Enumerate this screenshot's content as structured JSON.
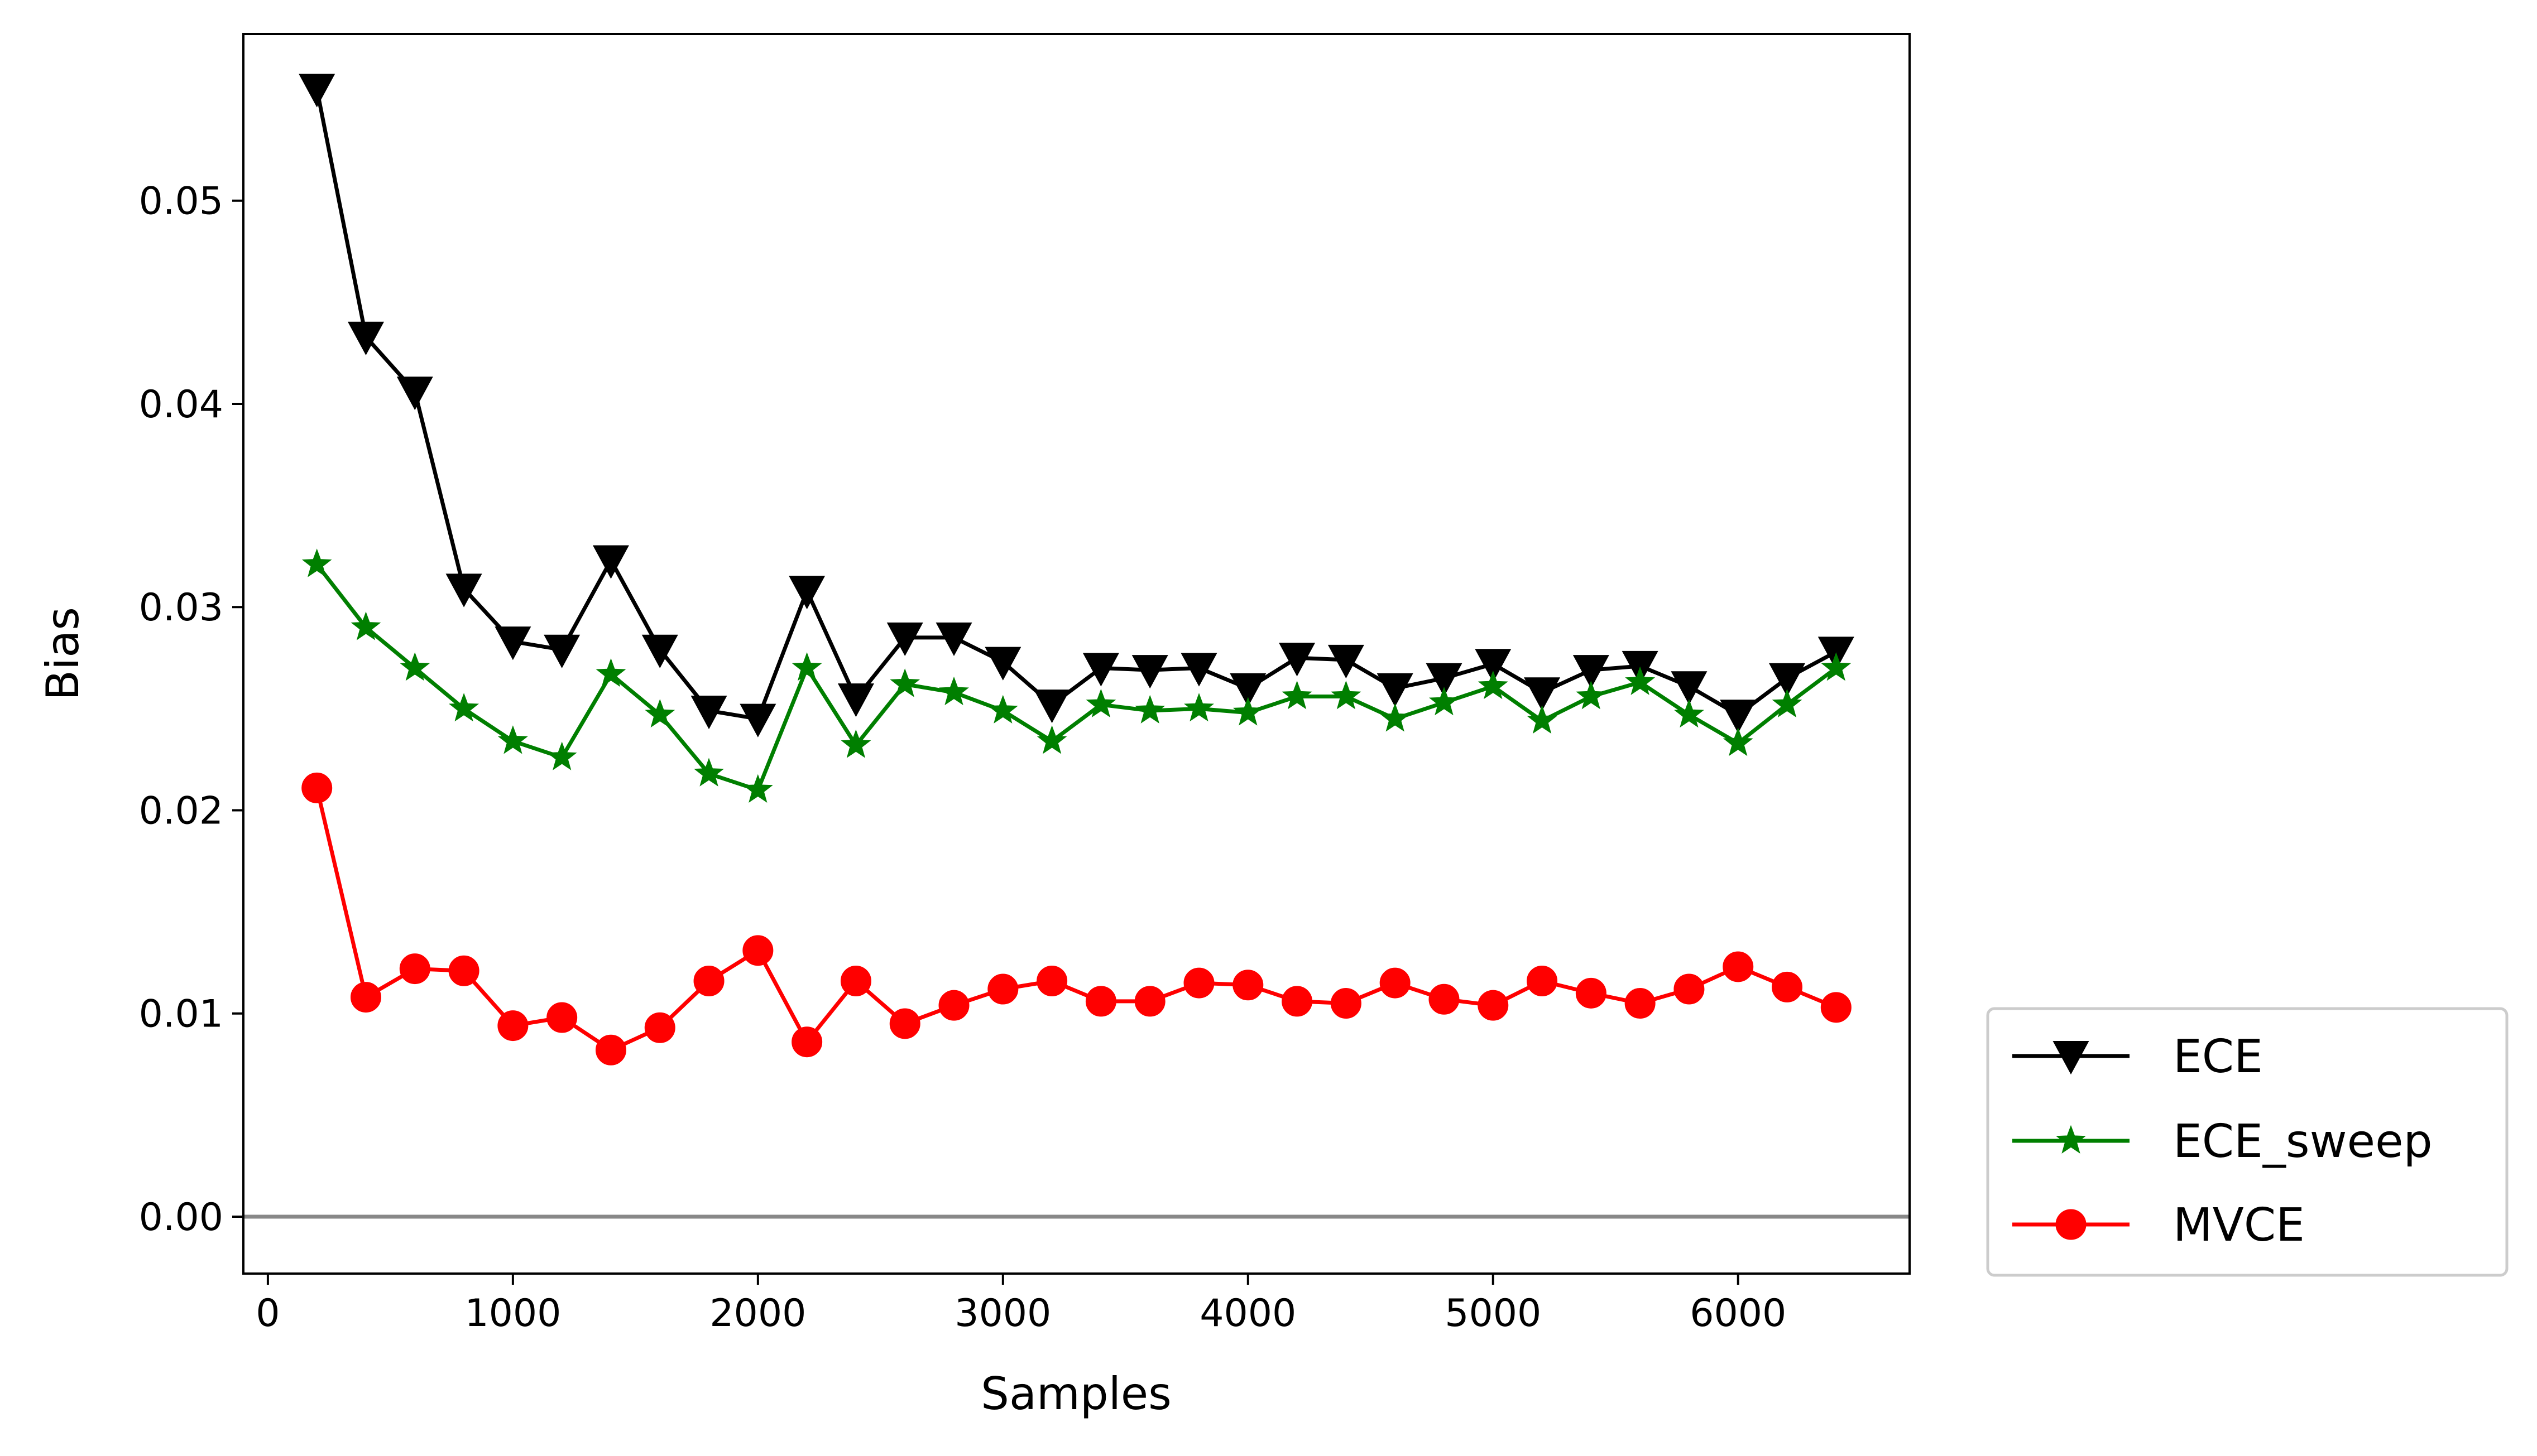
{
  "chart_data": {
    "type": "line",
    "xlabel": "Samples",
    "ylabel": "Bias",
    "xlim": [
      -100,
      6700
    ],
    "ylim": [
      -0.0028,
      0.0582
    ],
    "xticks": [
      0,
      1000,
      2000,
      3000,
      4000,
      5000,
      6000
    ],
    "xtick_labels": [
      "0",
      "1000",
      "2000",
      "3000",
      "4000",
      "5000",
      "6000"
    ],
    "yticks": [
      0.0,
      0.01,
      0.02,
      0.03,
      0.04,
      0.05
    ],
    "ytick_labels": [
      "0.00",
      "0.01",
      "0.02",
      "0.03",
      "0.04",
      "0.05"
    ],
    "reference_line": {
      "y": 0.0,
      "color": "#888888"
    },
    "grid": false,
    "legend_position": "outside-lower-right",
    "x": [
      200,
      400,
      600,
      800,
      1000,
      1200,
      1400,
      1600,
      1800,
      2000,
      2200,
      2400,
      2600,
      2800,
      3000,
      3200,
      3400,
      3600,
      3800,
      4000,
      4200,
      4400,
      4600,
      4800,
      5000,
      5200,
      5400,
      5600,
      5800,
      6000,
      6200,
      6400
    ],
    "series": [
      {
        "name": "ECE",
        "color": "#000000",
        "marker": "triangle-down",
        "values": [
          0.0555,
          0.0433,
          0.0406,
          0.0309,
          0.0283,
          0.0279,
          0.0323,
          0.0279,
          0.0249,
          0.0245,
          0.0308,
          0.0255,
          0.0285,
          0.0285,
          0.0273,
          0.0252,
          0.027,
          0.0269,
          0.027,
          0.026,
          0.0275,
          0.0274,
          0.026,
          0.0265,
          0.0272,
          0.0258,
          0.0269,
          0.0271,
          0.0261,
          0.0247,
          0.0265,
          0.0278
        ]
      },
      {
        "name": "ECE_sweep",
        "color": "#007f00",
        "marker": "star",
        "values": [
          0.0321,
          0.029,
          0.027,
          0.025,
          0.0234,
          0.0226,
          0.0267,
          0.0247,
          0.0218,
          0.021,
          0.027,
          0.0232,
          0.0262,
          0.0258,
          0.0249,
          0.0234,
          0.0252,
          0.0249,
          0.025,
          0.0248,
          0.0256,
          0.0256,
          0.0245,
          0.0253,
          0.0261,
          0.0244,
          0.0256,
          0.0263,
          0.0247,
          0.0233,
          0.0252,
          0.027
        ]
      },
      {
        "name": "MVCE",
        "color": "#ff0000",
        "marker": "circle",
        "values": [
          0.0211,
          0.0108,
          0.0122,
          0.0121,
          0.0094,
          0.0098,
          0.0082,
          0.0093,
          0.0116,
          0.0131,
          0.0086,
          0.0116,
          0.0095,
          0.0104,
          0.0112,
          0.0116,
          0.0106,
          0.0106,
          0.0115,
          0.0114,
          0.0106,
          0.0105,
          0.0115,
          0.0107,
          0.0104,
          0.0116,
          0.011,
          0.0105,
          0.0112,
          0.0123,
          0.0113,
          0.0103
        ]
      }
    ]
  }
}
